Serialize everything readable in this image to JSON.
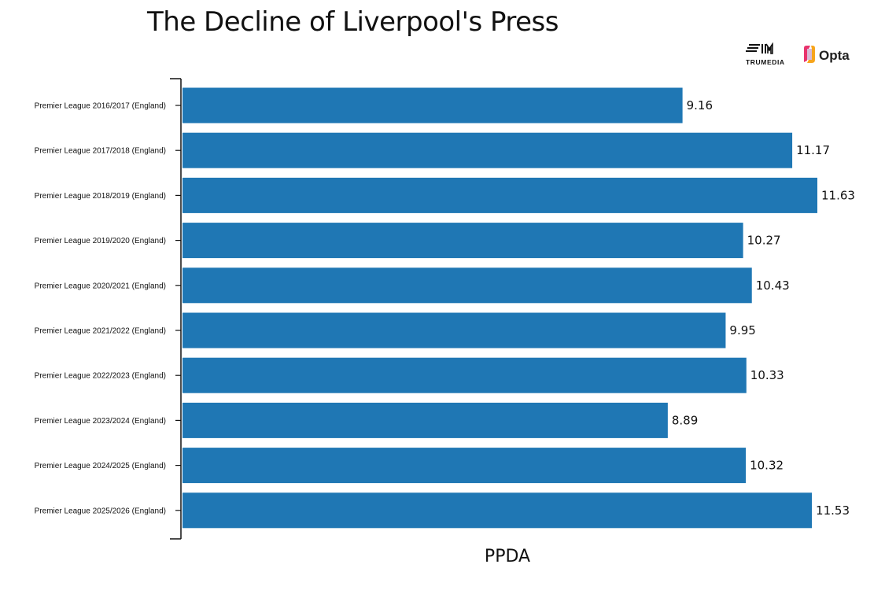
{
  "chart_data": {
    "type": "bar",
    "orientation": "horizontal",
    "title": "The Decline of Liverpool's Press",
    "xlabel": "PPDA",
    "ylabel": "",
    "categories": [
      "Premier League 2016/2017 (England)",
      "Premier League 2017/2018 (England)",
      "Premier League 2018/2019 (England)",
      "Premier League 2019/2020 (England)",
      "Premier League 2020/2021 (England)",
      "Premier League 2021/2022 (England)",
      "Premier League 2022/2023 (England)",
      "Premier League 2023/2024 (England)",
      "Premier League 2024/2025 (England)",
      "Premier League 2025/2026 (England)"
    ],
    "values": [
      9.16,
      11.17,
      11.63,
      10.27,
      10.43,
      9.95,
      10.33,
      8.89,
      10.32,
      11.53
    ],
    "value_labels": [
      "9.16",
      "11.17",
      "11.63",
      "10.27",
      "10.43",
      "9.95",
      "10.33",
      "8.89",
      "10.32",
      "11.53"
    ],
    "xlim": [
      0,
      11.63
    ],
    "grid": false,
    "bar_color": "#1f77b4"
  },
  "logos": {
    "trumedia": {
      "text": "TRUMEDIA",
      "icon": "trumedia-logo-icon"
    },
    "opta": {
      "text": "Opta",
      "icon": "opta-logo-icon",
      "accent": "#e8336d",
      "accent2": "#f7a51c"
    }
  }
}
